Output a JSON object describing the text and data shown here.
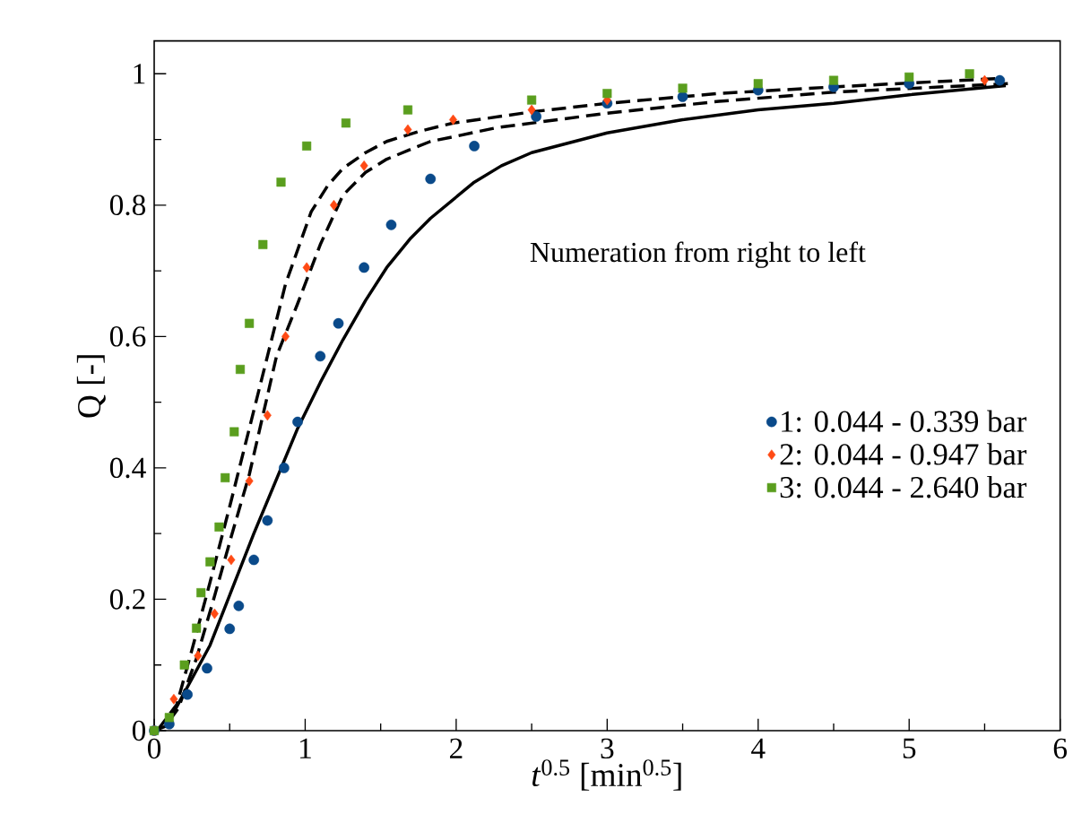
{
  "chart_data": {
    "type": "scatter",
    "xlabel": "*t*$^{0.5}$ [min$^{0.5}$]",
    "ylabel": "Q [-]",
    "xlim": [
      0,
      6
    ],
    "ylim": [
      0,
      1.05
    ],
    "xticks": [
      0,
      1,
      2,
      3,
      4,
      5,
      6
    ],
    "yticks": [
      0,
      0.2,
      0.4,
      0.6,
      0.8,
      1
    ],
    "legend": "right",
    "annotations": [
      "Numeration from right to left"
    ],
    "series": [
      {
        "name": "1: 0.044 - 0.339 bar",
        "color": "#0a4a8a",
        "marker": "circle",
        "x": [
          0,
          0.1,
          0.22,
          0.35,
          0.5,
          0.56,
          0.66,
          0.75,
          0.86,
          0.95,
          1.1,
          1.22,
          1.39,
          1.57,
          1.83,
          2.12,
          2.53,
          3,
          3.5,
          4,
          4.5,
          5,
          5.6
        ],
        "values": [
          0,
          0.01,
          0.055,
          0.095,
          0.155,
          0.19,
          0.26,
          0.32,
          0.4,
          0.47,
          0.57,
          0.62,
          0.705,
          0.77,
          0.84,
          0.89,
          0.935,
          0.955,
          0.965,
          0.975,
          0.98,
          0.985,
          0.99
        ]
      },
      {
        "name": "2: 0.044 - 0.947 bar",
        "color": "#ff4a14",
        "marker": "diamond",
        "x": [
          0,
          0.13,
          0.29,
          0.4,
          0.51,
          0.63,
          0.75,
          0.87,
          1.01,
          1.19,
          1.39,
          1.68,
          1.98,
          2.5,
          3,
          3.5,
          4,
          4.5,
          5,
          5.5
        ],
        "values": [
          0,
          0.048,
          0.114,
          0.178,
          0.26,
          0.38,
          0.48,
          0.6,
          0.705,
          0.8,
          0.86,
          0.915,
          0.93,
          0.945,
          0.96,
          null,
          null,
          null,
          null,
          0.99
        ]
      },
      {
        "name": "3: 0.044 - 2.640 bar",
        "color": "#5a9e1e",
        "marker": "square",
        "x": [
          0,
          0.1,
          0.2,
          0.28,
          0.31,
          0.37,
          0.43,
          0.47,
          0.53,
          0.57,
          0.63,
          0.72,
          0.84,
          1.01,
          1.27,
          1.68,
          2.5,
          3,
          3.5,
          4,
          4.5,
          5,
          5.4
        ],
        "values": [
          0,
          0.02,
          0.1,
          0.156,
          0.21,
          0.257,
          0.31,
          0.385,
          0.455,
          0.55,
          0.62,
          0.74,
          0.835,
          0.89,
          0.925,
          0.945,
          0.96,
          0.97,
          0.978,
          0.985,
          0.99,
          0.995,
          1
        ]
      },
      {
        "type": "line",
        "color": "#000000",
        "marker": "none",
        "line_style": "solid",
        "x": [
          0,
          0.08,
          0.37,
          0.66,
          0.95,
          1.1,
          1.25,
          1.4,
          1.54,
          1.7,
          1.83,
          2.12,
          2.3,
          2.5,
          3,
          3.5,
          4,
          4.5,
          5,
          5.64
        ],
        "values": [
          0,
          0.007,
          0.13,
          0.3,
          0.46,
          0.53,
          0.595,
          0.655,
          0.705,
          0.75,
          0.78,
          0.835,
          0.86,
          0.88,
          0.91,
          0.93,
          0.945,
          0.955,
          0.968,
          0.982
        ]
      },
      {
        "type": "line",
        "color": "#000000",
        "marker": "none",
        "line_style": "dashed",
        "x": [
          0.1,
          0.16,
          0.28,
          0.4,
          0.51,
          0.63,
          0.72,
          0.81,
          0.95,
          1.1,
          1.25,
          1.4,
          1.54,
          1.7,
          1.83,
          2.0,
          2.27,
          3,
          3.74,
          4.5,
          5.66
        ],
        "values": [
          0.015,
          0.034,
          0.11,
          0.205,
          0.295,
          0.39,
          0.48,
          0.57,
          0.65,
          0.74,
          0.815,
          0.85,
          0.87,
          0.885,
          0.897,
          0.905,
          0.918,
          0.94,
          0.958,
          0.972,
          0.985
        ]
      },
      {
        "type": "line",
        "color": "#000000",
        "marker": "none",
        "line_style": "dashed",
        "x": [
          0.02,
          0.15,
          0.25,
          0.37,
          0.51,
          0.63,
          0.75,
          0.87,
          1.04,
          1.15,
          1.25,
          1.4,
          1.54,
          1.75,
          1.98,
          2.2,
          2.5,
          3,
          3.74,
          4.5,
          5.6
        ],
        "values": [
          0,
          0.04,
          0.123,
          0.226,
          0.35,
          0.46,
          0.57,
          0.68,
          0.79,
          0.83,
          0.856,
          0.88,
          0.897,
          0.912,
          0.925,
          0.932,
          0.942,
          0.955,
          0.97,
          0.98,
          0.993
        ]
      }
    ]
  }
}
